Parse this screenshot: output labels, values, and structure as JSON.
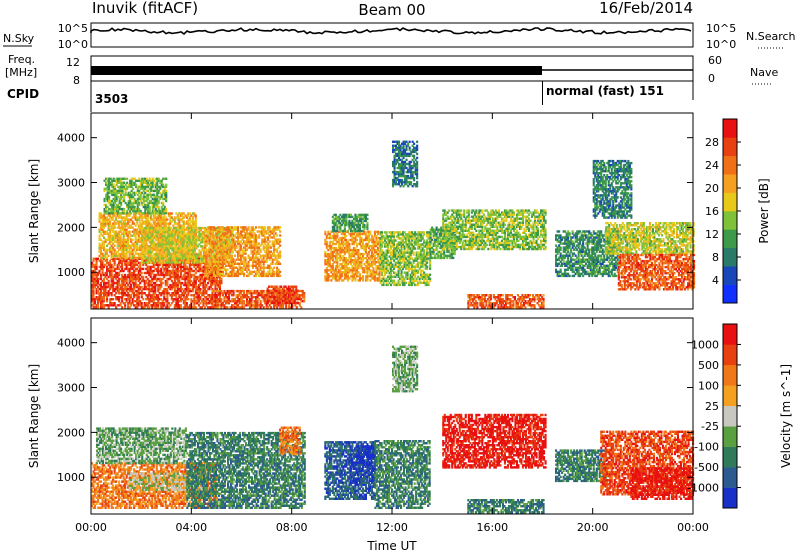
{
  "header": {
    "station": "Inuvik (fitACF)",
    "beam": "Beam 00",
    "date": "16/Feb/2014"
  },
  "status_panels": {
    "nsky_label": "N.Sky",
    "nsky_ticks": [
      "10^5",
      "10^0"
    ],
    "nsearch_label": "N.Search",
    "nsearch_ticks": [
      "10^5",
      "10^0"
    ],
    "freq_label_1": "Freq.",
    "freq_label_2": "[MHz]",
    "freq_ticks": [
      "12",
      "8"
    ],
    "nave_label": "Nave",
    "nave_ticks": [
      "60",
      "0"
    ],
    "cpid_label": "CPID",
    "cpid_value_1": "3503",
    "cpid_value_2": "normal (fast) 151",
    "cpid_switch_hour": 18
  },
  "chart_data": [
    {
      "type": "heatmap",
      "name": "power",
      "ylabel": "Slant Range [km]",
      "xlabel": "",
      "x_ticks": [
        "00:00",
        "04:00",
        "08:00",
        "12:00",
        "16:00",
        "20:00",
        "00:00"
      ],
      "x_range_hours": [
        0,
        24
      ],
      "y_ticks": [
        "1000",
        "2000",
        "3000",
        "4000"
      ],
      "y_tick_values": [
        1000,
        2000,
        3000,
        4000
      ],
      "y_range_km": [
        180,
        4550
      ],
      "colorbar": {
        "label": "Power [dB]",
        "ticks": [
          "4",
          "8",
          "12",
          "16",
          "20",
          "24",
          "28"
        ],
        "tick_values": [
          4,
          8,
          12,
          16,
          20,
          24,
          28
        ],
        "range": [
          0,
          32
        ],
        "colors": [
          "#1030ff",
          "#1848b8",
          "#2a7a6a",
          "#3c9a48",
          "#7fc23a",
          "#e8c818",
          "#f4a020",
          "#f07018",
          "#e84010",
          "#e81010"
        ]
      },
      "regions": [
        {
          "t0": 0.0,
          "t1": 5.2,
          "r0": 200,
          "r1": 1300,
          "v": 28
        },
        {
          "t0": 0.3,
          "t1": 4.2,
          "r0": 1300,
          "r1": 2300,
          "v": 20
        },
        {
          "t0": 0.5,
          "t1": 3.0,
          "r0": 2300,
          "r1": 3100,
          "v": 13
        },
        {
          "t0": 2.0,
          "t1": 5.6,
          "r0": 1200,
          "r1": 2000,
          "v": 17
        },
        {
          "t0": 4.5,
          "t1": 7.5,
          "r0": 900,
          "r1": 2000,
          "v": 22
        },
        {
          "t0": 4.8,
          "t1": 8.5,
          "r0": 200,
          "r1": 600,
          "v": 27
        },
        {
          "t0": 7.0,
          "t1": 8.2,
          "r0": 300,
          "r1": 700,
          "v": 29
        },
        {
          "t0": 9.3,
          "t1": 11.5,
          "r0": 800,
          "r1": 1900,
          "v": 22
        },
        {
          "t0": 9.6,
          "t1": 11.0,
          "r0": 1900,
          "r1": 2300,
          "v": 10
        },
        {
          "t0": 11.5,
          "t1": 13.5,
          "r0": 700,
          "r1": 1900,
          "v": 14
        },
        {
          "t0": 12.0,
          "t1": 13.0,
          "r0": 2900,
          "r1": 3900,
          "v": 7
        },
        {
          "t0": 13.5,
          "t1": 14.5,
          "r0": 1300,
          "r1": 2000,
          "v": 12
        },
        {
          "t0": 14.0,
          "t1": 18.1,
          "r0": 1500,
          "r1": 2400,
          "v": 14
        },
        {
          "t0": 15.0,
          "t1": 18.0,
          "r0": 200,
          "r1": 500,
          "v": 27
        },
        {
          "t0": 18.5,
          "t1": 21.0,
          "r0": 900,
          "r1": 1900,
          "v": 9
        },
        {
          "t0": 20.5,
          "t1": 24.0,
          "r0": 1400,
          "r1": 2100,
          "v": 16
        },
        {
          "t0": 21.0,
          "t1": 24.0,
          "r0": 600,
          "r1": 1400,
          "v": 27
        },
        {
          "t0": 20.0,
          "t1": 21.5,
          "r0": 2200,
          "r1": 3500,
          "v": 8
        }
      ]
    },
    {
      "type": "heatmap",
      "name": "velocity",
      "ylabel": "Slant Range [km]",
      "xlabel": "Time UT",
      "x_ticks": [
        "00:00",
        "04:00",
        "08:00",
        "12:00",
        "16:00",
        "20:00",
        "00:00"
      ],
      "x_range_hours": [
        0,
        24
      ],
      "y_ticks": [
        "1000",
        "2000",
        "3000",
        "4000"
      ],
      "y_tick_values": [
        1000,
        2000,
        3000,
        4000
      ],
      "y_range_km": [
        180,
        4550
      ],
      "colorbar": {
        "label": "Velocity [m s^-1]",
        "ticks": [
          "1000",
          "500",
          "100",
          "25",
          "-25",
          "-100",
          "-500",
          "-1000"
        ],
        "colors": [
          "#1830c8",
          "#2a5a90",
          "#2f7a5a",
          "#5aa040",
          "#c8c8c0",
          "#f4a020",
          "#f07818",
          "#e84010",
          "#e81010"
        ]
      },
      "regions": [
        {
          "t0": 0.0,
          "t1": 5.0,
          "r0": 300,
          "r1": 1300,
          "v": 6
        },
        {
          "t0": 0.2,
          "t1": 3.8,
          "r0": 1300,
          "r1": 2100,
          "v": 3
        },
        {
          "t0": 1.5,
          "t1": 4.5,
          "r0": 700,
          "r1": 1100,
          "v": 4
        },
        {
          "t0": 3.8,
          "t1": 8.5,
          "r0": 300,
          "r1": 2000,
          "v": 2
        },
        {
          "t0": 7.5,
          "t1": 8.3,
          "r0": 1500,
          "r1": 2100,
          "v": 6
        },
        {
          "t0": 9.3,
          "t1": 11.3,
          "r0": 500,
          "r1": 1800,
          "v": 1
        },
        {
          "t0": 10.3,
          "t1": 11.3,
          "r0": 900,
          "r1": 1700,
          "v": 0
        },
        {
          "t0": 11.3,
          "t1": 13.5,
          "r0": 300,
          "r1": 1800,
          "v": 2
        },
        {
          "t0": 12.0,
          "t1": 13.0,
          "r0": 2900,
          "r1": 3900,
          "v": 3
        },
        {
          "t0": 14.0,
          "t1": 18.1,
          "r0": 1200,
          "r1": 2400,
          "v": 8
        },
        {
          "t0": 15.0,
          "t1": 18.0,
          "r0": 200,
          "r1": 500,
          "v": 2
        },
        {
          "t0": 18.5,
          "t1": 20.5,
          "r0": 900,
          "r1": 1600,
          "v": 2
        },
        {
          "t0": 20.3,
          "t1": 24.0,
          "r0": 600,
          "r1": 2000,
          "v": 7
        },
        {
          "t0": 21.5,
          "t1": 24.0,
          "r0": 500,
          "r1": 1200,
          "v": 8
        }
      ]
    }
  ]
}
